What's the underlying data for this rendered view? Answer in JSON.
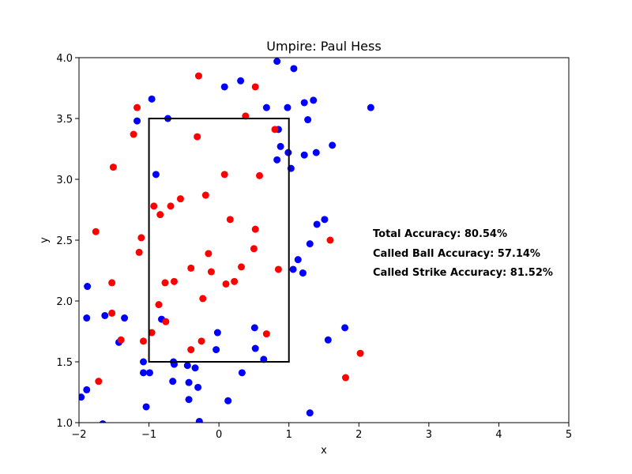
{
  "chart_data": {
    "type": "scatter",
    "title": "Umpire: Paul Hess",
    "xlabel": "x",
    "ylabel": "y",
    "xlim": [
      -2,
      5
    ],
    "ylim": [
      1.0,
      4.0
    ],
    "x_ticks": [
      "−2",
      "−1",
      "0",
      "1",
      "2",
      "3",
      "4",
      "5"
    ],
    "y_ticks": [
      "1.0",
      "1.5",
      "2.0",
      "2.5",
      "3.0",
      "3.5",
      "4.0"
    ],
    "grid": false,
    "strike_zone": {
      "x": [
        -1,
        1
      ],
      "y": [
        1.5,
        3.5
      ]
    },
    "series": [
      {
        "color": "#0000ff",
        "points": [
          [
            0.83,
            3.97
          ],
          [
            1.07,
            3.91
          ],
          [
            0.31,
            3.81
          ],
          [
            0.08,
            3.76
          ],
          [
            -0.96,
            3.66
          ],
          [
            1.35,
            3.65
          ],
          [
            1.22,
            3.63
          ],
          [
            2.17,
            3.59
          ],
          [
            0.68,
            3.59
          ],
          [
            0.98,
            3.59
          ],
          [
            -0.73,
            3.5
          ],
          [
            1.27,
            3.49
          ],
          [
            -1.17,
            3.48
          ],
          [
            0.85,
            3.41
          ],
          [
            1.62,
            3.28
          ],
          [
            0.88,
            3.27
          ],
          [
            0.99,
            3.22
          ],
          [
            1.39,
            3.22
          ],
          [
            1.22,
            3.2
          ],
          [
            0.83,
            3.16
          ],
          [
            1.03,
            3.09
          ],
          [
            -0.9,
            3.04
          ],
          [
            1.51,
            2.67
          ],
          [
            1.4,
            2.63
          ],
          [
            1.3,
            2.47
          ],
          [
            1.13,
            2.34
          ],
          [
            1.06,
            2.26
          ],
          [
            1.2,
            2.23
          ],
          [
            -1.88,
            2.12
          ],
          [
            -1.63,
            1.88
          ],
          [
            -1.35,
            1.86
          ],
          [
            -1.89,
            1.86
          ],
          [
            -0.82,
            1.85
          ],
          [
            1.8,
            1.78
          ],
          [
            0.51,
            1.78
          ],
          [
            -0.02,
            1.74
          ],
          [
            1.56,
            1.68
          ],
          [
            -1.43,
            1.66
          ],
          [
            -0.04,
            1.6
          ],
          [
            0.52,
            1.61
          ],
          [
            0.64,
            1.52
          ],
          [
            -1.08,
            1.5
          ],
          [
            -0.65,
            1.5
          ],
          [
            -0.64,
            1.48
          ],
          [
            -0.45,
            1.47
          ],
          [
            -0.34,
            1.45
          ],
          [
            -1.08,
            1.41
          ],
          [
            -0.99,
            1.41
          ],
          [
            0.33,
            1.41
          ],
          [
            -0.66,
            1.34
          ],
          [
            -0.43,
            1.33
          ],
          [
            -0.3,
            1.29
          ],
          [
            -1.89,
            1.27
          ],
          [
            -1.97,
            1.21
          ],
          [
            -0.43,
            1.19
          ],
          [
            0.13,
            1.18
          ],
          [
            -1.04,
            1.13
          ],
          [
            1.3,
            1.08
          ],
          [
            -0.28,
            1.01
          ],
          [
            -1.66,
            0.99
          ]
        ]
      },
      {
        "color": "#ff0000",
        "points": [
          [
            -0.29,
            3.85
          ],
          [
            0.52,
            3.76
          ],
          [
            -1.17,
            3.59
          ],
          [
            0.38,
            3.52
          ],
          [
            0.8,
            3.41
          ],
          [
            -1.22,
            3.37
          ],
          [
            -0.31,
            3.35
          ],
          [
            -1.51,
            3.1
          ],
          [
            0.08,
            3.04
          ],
          [
            0.58,
            3.03
          ],
          [
            -0.55,
            2.84
          ],
          [
            -0.19,
            2.87
          ],
          [
            -0.93,
            2.78
          ],
          [
            -0.69,
            2.78
          ],
          [
            -0.84,
            2.71
          ],
          [
            0.16,
            2.67
          ],
          [
            -1.76,
            2.57
          ],
          [
            0.52,
            2.59
          ],
          [
            1.59,
            2.5
          ],
          [
            -1.11,
            2.52
          ],
          [
            0.5,
            2.43
          ],
          [
            -1.14,
            2.4
          ],
          [
            -0.15,
            2.39
          ],
          [
            -0.4,
            2.27
          ],
          [
            0.32,
            2.28
          ],
          [
            0.85,
            2.26
          ],
          [
            -0.11,
            2.24
          ],
          [
            -0.64,
            2.16
          ],
          [
            -0.77,
            2.15
          ],
          [
            0.22,
            2.16
          ],
          [
            0.1,
            2.14
          ],
          [
            -1.53,
            2.15
          ],
          [
            -0.23,
            2.02
          ],
          [
            -0.86,
            1.97
          ],
          [
            -1.53,
            1.9
          ],
          [
            -0.76,
            1.83
          ],
          [
            -0.96,
            1.74
          ],
          [
            0.68,
            1.73
          ],
          [
            -1.08,
            1.67
          ],
          [
            -1.4,
            1.68
          ],
          [
            -0.25,
            1.67
          ],
          [
            -0.4,
            1.6
          ],
          [
            2.02,
            1.57
          ],
          [
            1.81,
            1.37
          ],
          [
            -1.72,
            1.34
          ]
        ]
      }
    ],
    "annotations": [
      "Total Accuracy: 80.54%",
      "Called Ball Accuracy: 57.14%",
      "Called Strike Accuracy: 81.52%"
    ]
  }
}
